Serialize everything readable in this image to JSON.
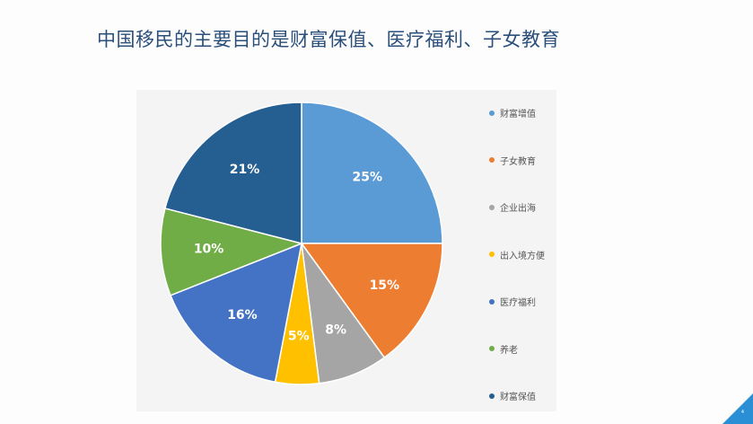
{
  "slide": {
    "title": "中国移民的主要目的是财富保值、医疗福利、子女教育",
    "page_number": "4"
  },
  "colors": {
    "title": "#2a4f7a",
    "accent_triangle": "#2b8fd6",
    "panel_background": "#f4f4f4"
  },
  "chart_data": {
    "type": "pie",
    "title": "",
    "legend_position": "right",
    "data_label_format": "percent",
    "start_angle": "12 o'clock, clockwise",
    "categories": [
      "财富增值",
      "子女教育",
      "企业出海",
      "出入境方便",
      "医疗福利",
      "养老",
      "财富保值"
    ],
    "values": [
      25,
      15,
      8,
      5,
      16,
      10,
      21
    ],
    "labels": [
      "25%",
      "15%",
      "8%",
      "5%",
      "16%",
      "10%",
      "21%"
    ],
    "colors": [
      "#5b9bd5",
      "#ed7d31",
      "#a5a5a5",
      "#ffc000",
      "#4472c4",
      "#70ad47",
      "#255e91"
    ]
  }
}
